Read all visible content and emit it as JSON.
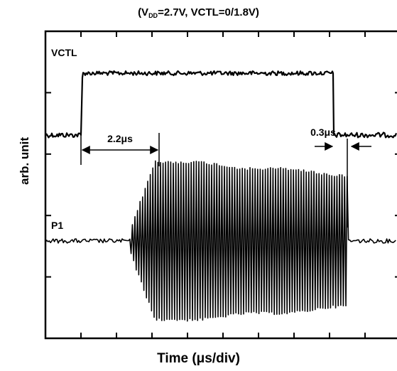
{
  "chart_data": {
    "type": "line",
    "title": {
      "prefix": "(V",
      "subscript": "DD",
      "suffix": "=2.7V, VCTL=0/1.8V)"
    },
    "xlabel": "Time (μs/div)",
    "ylabel": "arb. unit",
    "grid": false,
    "x_divisions": 10,
    "y_divisions": 5,
    "series": [
      {
        "name": "VCTL",
        "low_level": 0,
        "high_level": 1,
        "rise_time_div": 1.0,
        "fall_time_div": 8.1
      },
      {
        "name": "P1",
        "envelope_start_div": 2.4,
        "envelope_full_div": 3.1,
        "envelope_end_div": 8.5
      }
    ],
    "annotations": [
      {
        "text": "2.2μs",
        "from_div": 1.0,
        "to_div": 3.2
      },
      {
        "text": "0.3μs",
        "from_div": 8.1,
        "to_div": 8.5
      }
    ]
  }
}
